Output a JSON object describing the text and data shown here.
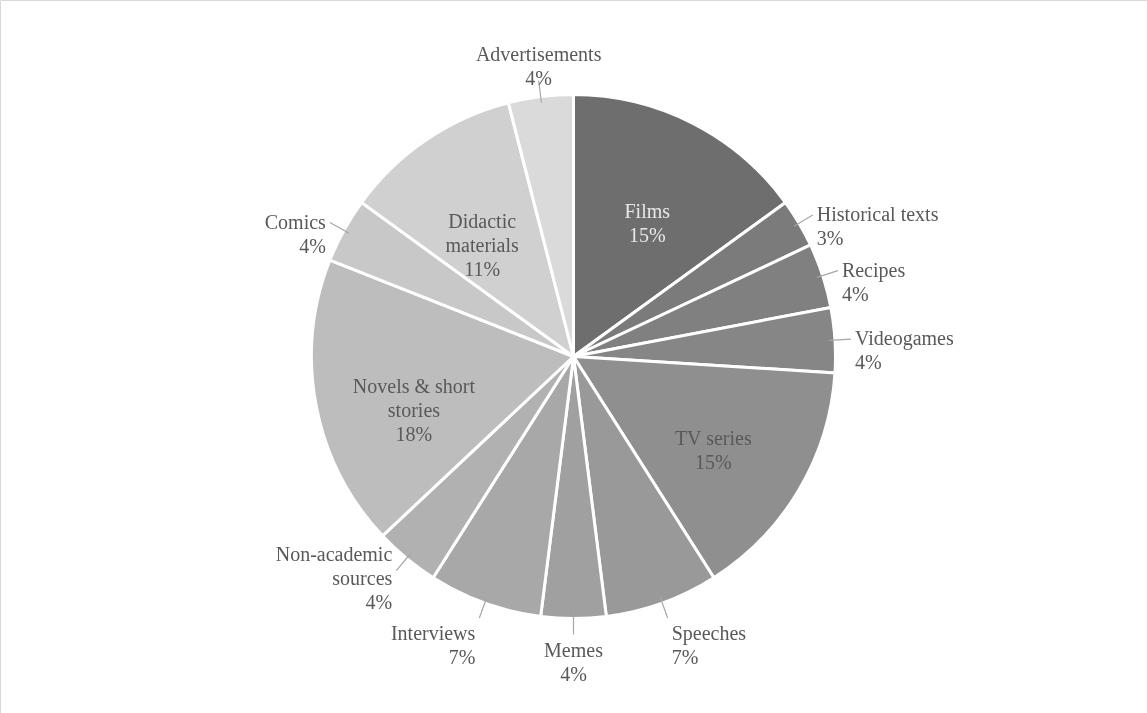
{
  "chart_data": {
    "type": "pie",
    "categories": [
      "Films",
      "Historical texts",
      "Recipes",
      "Videogames",
      "TV series",
      "Speeches",
      "Memes",
      "Interviews",
      "Non-academic sources",
      "Novels & short stories",
      "Comics",
      "Didactic materials",
      "Advertisements"
    ],
    "values": [
      15,
      3,
      4,
      4,
      15,
      7,
      4,
      7,
      4,
      18,
      4,
      11,
      4
    ],
    "value_labels": [
      "15%",
      "3%",
      "4%",
      "4%",
      "15%",
      "7%",
      "4%",
      "7%",
      "4%",
      "18%",
      "4%",
      "11%",
      "4%"
    ],
    "colors": [
      "#6e6e6e",
      "#7b7b7b",
      "#808080",
      "#868686",
      "#8f8f8f",
      "#999999",
      "#a0a0a0",
      "#a8a8a8",
      "#b1b1b1",
      "#bdbdbd",
      "#c8c8c8",
      "#d0d0d0",
      "#dadada"
    ]
  }
}
